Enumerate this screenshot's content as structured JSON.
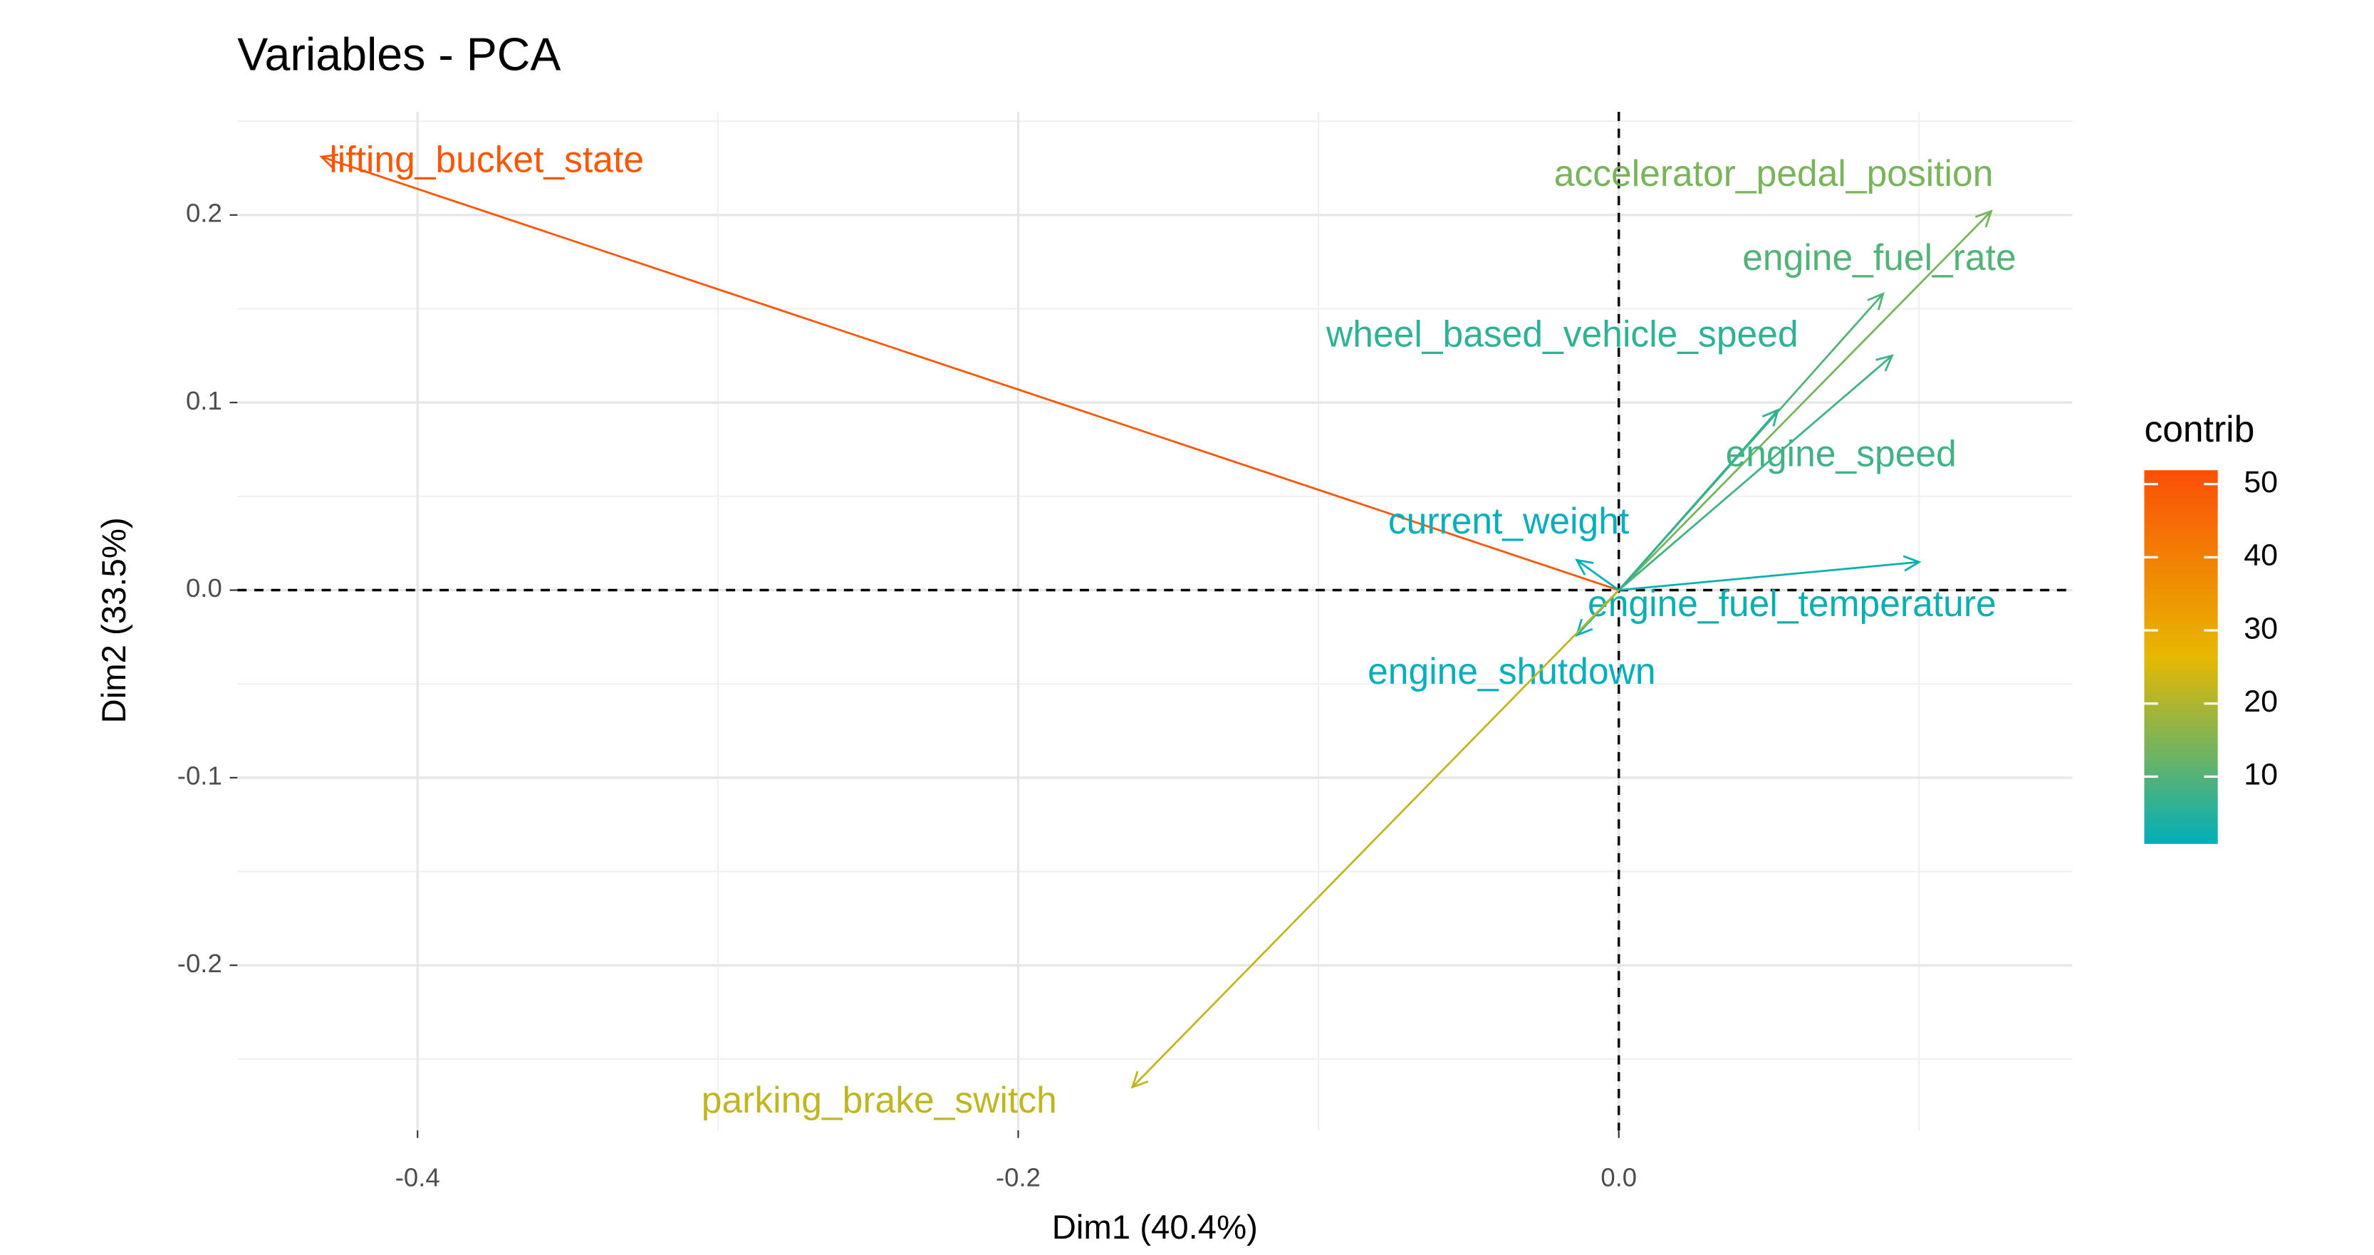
{
  "chart_data": {
    "type": "biplot",
    "title": "Variables - PCA",
    "x_label": "Dim1 (40.4%)",
    "y_label": "Dim2 (33.5%)",
    "labels": [
      "lifting_bucket_state",
      "accelerator_pedal_position",
      "engine_fuel_rate",
      "wheel_based_vehicle_speed",
      "engine_speed",
      "current_weight",
      "engine_fuel_temperature",
      "engine_shutdown",
      "parking_brake_switch"
    ],
    "x": [
      -0.432,
      0.124,
      0.088,
      0.053,
      0.091,
      -0.014,
      0.1,
      -0.014,
      -0.162
    ],
    "values": [
      0.231,
      0.202,
      0.158,
      0.096,
      0.125,
      0.016,
      0.015,
      -0.024,
      -0.265
    ],
    "contrib": [
      50,
      14,
      10,
      6,
      8,
      1,
      2,
      1,
      22
    ],
    "xlim": [
      -0.46,
      0.151
    ],
    "ylim": [
      -0.288,
      0.255
    ],
    "xticks": [
      -0.4,
      -0.2,
      {
        "value": 0,
        "label": "0.0"
      }
    ],
    "yticks": [
      -0.2,
      -0.1,
      {
        "value": 0,
        "label": "0.0"
      },
      0.1,
      0.2
    ],
    "grid": true,
    "legend_title": "contrib",
    "color_lim": [
      0.8,
      51.9
    ],
    "color_ticks": [
      10,
      20,
      30,
      40,
      50
    ],
    "gradient": [
      "#00AFBB",
      "#E7B800",
      "#FC4E07"
    ]
  }
}
